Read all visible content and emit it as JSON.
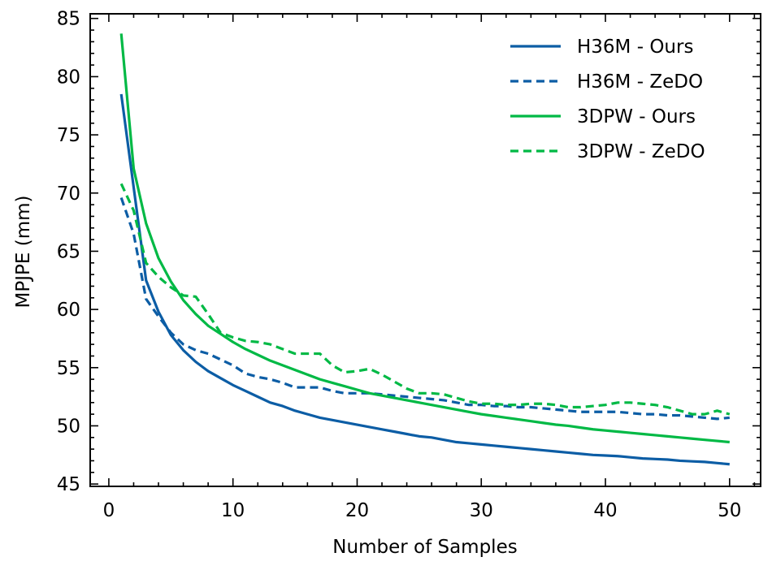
{
  "chart_data": {
    "type": "line",
    "title": "",
    "xlabel": "Number of Samples",
    "ylabel": "MPJPE (mm)",
    "xlim": [
      -1.5,
      52.5
    ],
    "ylim": [
      44.8,
      85.4
    ],
    "xticks": [
      0,
      10,
      20,
      30,
      40,
      50
    ],
    "yticks": [
      45,
      50,
      55,
      60,
      65,
      70,
      75,
      80,
      85
    ],
    "x_minor_step": 2,
    "y_minor_step": 1,
    "grid": false,
    "legend_position": "top-right",
    "series": [
      {
        "name": "H36M - Ours",
        "color": "#0c5da5",
        "dash": "solid",
        "x": [
          1,
          2,
          3,
          4,
          5,
          6,
          7,
          8,
          9,
          10,
          11,
          12,
          13,
          14,
          15,
          16,
          17,
          18,
          19,
          20,
          21,
          22,
          23,
          24,
          25,
          26,
          27,
          28,
          29,
          30,
          31,
          32,
          33,
          34,
          35,
          36,
          37,
          38,
          39,
          40,
          41,
          42,
          43,
          44,
          45,
          46,
          47,
          48,
          49,
          50
        ],
        "values": [
          78.5,
          70.5,
          62.5,
          59.8,
          57.8,
          56.5,
          55.5,
          54.7,
          54.1,
          53.5,
          53.0,
          52.5,
          52.0,
          51.7,
          51.3,
          51.0,
          50.7,
          50.5,
          50.3,
          50.1,
          49.9,
          49.7,
          49.5,
          49.3,
          49.1,
          49.0,
          48.8,
          48.6,
          48.5,
          48.4,
          48.3,
          48.2,
          48.1,
          48.0,
          47.9,
          47.8,
          47.7,
          47.6,
          47.5,
          47.45,
          47.4,
          47.3,
          47.2,
          47.15,
          47.1,
          47.0,
          46.95,
          46.9,
          46.8,
          46.7
        ]
      },
      {
        "name": "H36M - ZeDO",
        "color": "#0c5da5",
        "dash": "dashed",
        "x": [
          1,
          2,
          3,
          4,
          5,
          6,
          7,
          8,
          9,
          10,
          11,
          12,
          13,
          14,
          15,
          16,
          17,
          18,
          19,
          20,
          21,
          22,
          23,
          24,
          25,
          26,
          27,
          28,
          29,
          30,
          31,
          32,
          33,
          34,
          35,
          36,
          37,
          38,
          39,
          40,
          41,
          42,
          43,
          44,
          45,
          46,
          47,
          48,
          49,
          50
        ],
        "values": [
          69.6,
          66.5,
          60.9,
          59.4,
          58.0,
          57.0,
          56.5,
          56.2,
          55.7,
          55.2,
          54.5,
          54.2,
          54.0,
          53.7,
          53.3,
          53.3,
          53.3,
          53.0,
          52.8,
          52.8,
          52.8,
          52.7,
          52.6,
          52.5,
          52.4,
          52.3,
          52.2,
          52.0,
          51.8,
          51.8,
          51.7,
          51.7,
          51.6,
          51.6,
          51.5,
          51.4,
          51.3,
          51.2,
          51.2,
          51.2,
          51.2,
          51.1,
          51.0,
          51.0,
          50.9,
          50.9,
          50.8,
          50.7,
          50.6,
          50.7
        ]
      },
      {
        "name": "3DPW - Ours",
        "color": "#00b945",
        "dash": "solid",
        "x": [
          1,
          2,
          3,
          4,
          5,
          6,
          7,
          8,
          9,
          10,
          11,
          12,
          13,
          14,
          15,
          16,
          17,
          18,
          19,
          20,
          21,
          22,
          23,
          24,
          25,
          26,
          27,
          28,
          29,
          30,
          31,
          32,
          33,
          34,
          35,
          36,
          37,
          38,
          39,
          40,
          41,
          42,
          43,
          44,
          45,
          46,
          47,
          48,
          49,
          50
        ],
        "values": [
          83.7,
          72.1,
          67.4,
          64.4,
          62.4,
          60.8,
          59.6,
          58.6,
          57.9,
          57.2,
          56.6,
          56.1,
          55.6,
          55.2,
          54.8,
          54.4,
          54.0,
          53.7,
          53.4,
          53.1,
          52.8,
          52.6,
          52.4,
          52.2,
          52.0,
          51.8,
          51.6,
          51.4,
          51.2,
          51.0,
          50.85,
          50.7,
          50.55,
          50.4,
          50.25,
          50.1,
          50.0,
          49.85,
          49.7,
          49.6,
          49.5,
          49.4,
          49.3,
          49.2,
          49.1,
          49.0,
          48.9,
          48.8,
          48.7,
          48.6
        ]
      },
      {
        "name": "3DPW - ZeDO",
        "color": "#00b945",
        "dash": "dashed",
        "x": [
          1,
          2,
          3,
          4,
          5,
          6,
          7,
          8,
          9,
          10,
          11,
          12,
          13,
          14,
          15,
          16,
          17,
          18,
          19,
          20,
          21,
          22,
          23,
          24,
          25,
          26,
          27,
          28,
          29,
          30,
          31,
          32,
          33,
          34,
          35,
          36,
          37,
          38,
          39,
          40,
          41,
          42,
          43,
          44,
          45,
          46,
          47,
          48,
          49,
          50
        ],
        "values": [
          70.8,
          68.5,
          64.0,
          62.8,
          61.9,
          61.2,
          61.1,
          59.6,
          58.0,
          57.6,
          57.3,
          57.2,
          57.0,
          56.6,
          56.2,
          56.2,
          56.2,
          55.2,
          54.6,
          54.7,
          54.9,
          54.4,
          53.8,
          53.2,
          52.8,
          52.8,
          52.7,
          52.4,
          52.1,
          51.9,
          51.9,
          51.8,
          51.8,
          51.9,
          51.9,
          51.8,
          51.6,
          51.6,
          51.7,
          51.8,
          52.0,
          52.0,
          51.9,
          51.8,
          51.6,
          51.3,
          51.0,
          51.0,
          51.3,
          51.0
        ]
      }
    ]
  }
}
